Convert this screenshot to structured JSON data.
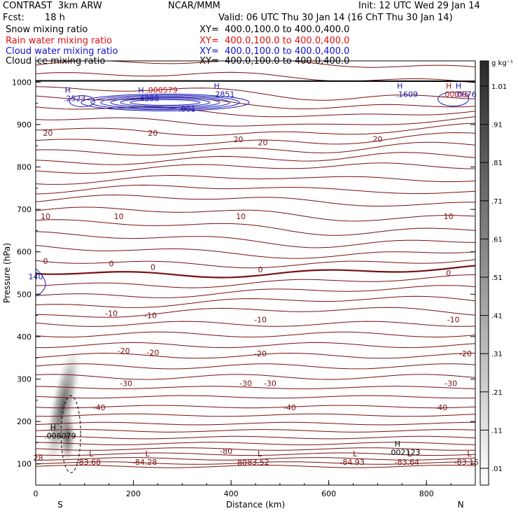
{
  "header": {
    "experiment": "CONTRAST  3km ARW",
    "center": "NCAR/MMM",
    "init": "Init: 12 UTC Wed 29 Jan 14",
    "fcst_label": "Fcst:",
    "fcst_value": "18 h",
    "valid": "Valid: 06 UTC Thu 30 Jan 14 (16 ChT Thu 30 Jan 14)"
  },
  "fields": [
    {
      "name": "Snow mixing ratio",
      "xy": "XY=  400.0,100.0 to 400.0,400.0",
      "color": "#000000"
    },
    {
      "name": "Rain water mixing ratio",
      "xy": "XY=  400.0,100.0 to 400.0,400.0",
      "color": "#e01010"
    },
    {
      "name": "Cloud water mixing ratio",
      "xy": "XY=  400.0,100.0 to 400.0,400.0",
      "color": "#1010d0"
    },
    {
      "name": "Cloud ice mixing ratio",
      "xy": "XY=  400.0,100.0 to 400.0,400.0",
      "color": "#000000"
    }
  ],
  "colors": {
    "temperature": "#7a1010",
    "cloud_water": "#1a1ab4",
    "rain_water": "#c01010",
    "axes": "#000000"
  },
  "chart_data": {
    "type": "cross-section",
    "xlabel": "Distance (km)",
    "ylabel": "Pressure (hPa)",
    "xlim": [
      0,
      900
    ],
    "ylim": [
      1050,
      50
    ],
    "x_ticks": [
      0,
      200,
      400,
      600,
      800
    ],
    "y_ticks": [
      100,
      200,
      300,
      400,
      500,
      600,
      700,
      800,
      900,
      1000
    ],
    "endpoint_labels": {
      "left": "S",
      "right": "N"
    },
    "colorbar": {
      "unit": "g kg⁻¹",
      "range": [
        0,
        1.1
      ],
      "ticks": [
        ".01",
        ".11",
        ".21",
        ".31",
        ".41",
        ".51",
        ".61",
        ".71",
        ".81",
        ".91",
        "1.01"
      ]
    },
    "temperature_contour_labels": [
      {
        "x": 420,
        "p": 103,
        "text": "-80"
      },
      {
        "x": 390,
        "p": 130,
        "text": "-80"
      },
      {
        "x": 130,
        "p": 233,
        "text": "-40"
      },
      {
        "x": 520,
        "p": 233,
        "text": "-40"
      },
      {
        "x": 830,
        "p": 233,
        "text": "-40"
      },
      {
        "x": 185,
        "p": 290,
        "text": "-30"
      },
      {
        "x": 430,
        "p": 290,
        "text": "-30"
      },
      {
        "x": 480,
        "p": 290,
        "text": "-30"
      },
      {
        "x": 850,
        "p": 290,
        "text": "-30"
      },
      {
        "x": 180,
        "p": 367,
        "text": "-20"
      },
      {
        "x": 240,
        "p": 363,
        "text": "-20"
      },
      {
        "x": 460,
        "p": 360,
        "text": "-20"
      },
      {
        "x": 880,
        "p": 360,
        "text": "-20"
      },
      {
        "x": 155,
        "p": 455,
        "text": "-10"
      },
      {
        "x": 235,
        "p": 450,
        "text": "-10"
      },
      {
        "x": 460,
        "p": 440,
        "text": "-10"
      },
      {
        "x": 855,
        "p": 440,
        "text": "-10"
      },
      {
        "x": 20,
        "p": 578,
        "text": "0"
      },
      {
        "x": 155,
        "p": 572,
        "text": "0"
      },
      {
        "x": 240,
        "p": 564,
        "text": "0"
      },
      {
        "x": 460,
        "p": 558,
        "text": "0"
      },
      {
        "x": 845,
        "p": 550,
        "text": "0"
      },
      {
        "x": 20,
        "p": 684,
        "text": "10"
      },
      {
        "x": 170,
        "p": 684,
        "text": "10"
      },
      {
        "x": 420,
        "p": 684,
        "text": "10"
      },
      {
        "x": 845,
        "p": 684,
        "text": "10"
      },
      {
        "x": 25,
        "p": 880,
        "text": "20"
      },
      {
        "x": 240,
        "p": 880,
        "text": "20"
      },
      {
        "x": 415,
        "p": 865,
        "text": "20"
      },
      {
        "x": 465,
        "p": 858,
        "text": "20"
      },
      {
        "x": 700,
        "p": 866,
        "text": "20"
      }
    ],
    "temperature_extrema": [
      {
        "x": 108,
        "p": 98,
        "kind": "L",
        "value": "-83.68"
      },
      {
        "x": 223,
        "p": 98,
        "kind": "L",
        "value": "-84.28"
      },
      {
        "x": 453,
        "p": 98,
        "kind": "L",
        "value": "-83.52"
      },
      {
        "x": 648,
        "p": 98,
        "kind": "L",
        "value": "-84.93"
      },
      {
        "x": 760,
        "p": 98,
        "kind": "L",
        "value": "-83.64"
      },
      {
        "x": 882,
        "p": 98,
        "kind": "L",
        "value": "-83.15"
      },
      {
        "x": 5,
        "p": 108,
        "kind": "",
        "value": "28"
      }
    ],
    "snow_maxima": [
      {
        "x": 50,
        "p": 160,
        "kind": "H",
        "value": ".008079"
      },
      {
        "x": 755,
        "p": 121,
        "kind": "H",
        "value": ".002123"
      }
    ],
    "cloud_water_maxima": [
      {
        "x": 80,
        "p": 955,
        "kind": "H",
        "value": ".2523"
      },
      {
        "x": 230,
        "p": 955,
        "kind": "H",
        "value": ".4388"
      },
      {
        "x": 385,
        "p": 965,
        "kind": "H",
        "value": ".2851"
      },
      {
        "x": 760,
        "p": 965,
        "kind": "H",
        "value": ".1609"
      },
      {
        "x": 880,
        "p": 965,
        "kind": "H",
        "value": ".0076"
      },
      {
        "x": 0,
        "p": 535,
        "kind": "",
        "value": "140"
      },
      {
        "x": 310,
        "p": 930,
        "kind": "",
        "value": ".001"
      }
    ],
    "rain_water_maxima": [
      {
        "x": 258,
        "p": 975,
        "kind": "",
        "value": ".000579"
      },
      {
        "x": 860,
        "p": 965,
        "kind": "H",
        "value": ".00075"
      }
    ]
  }
}
